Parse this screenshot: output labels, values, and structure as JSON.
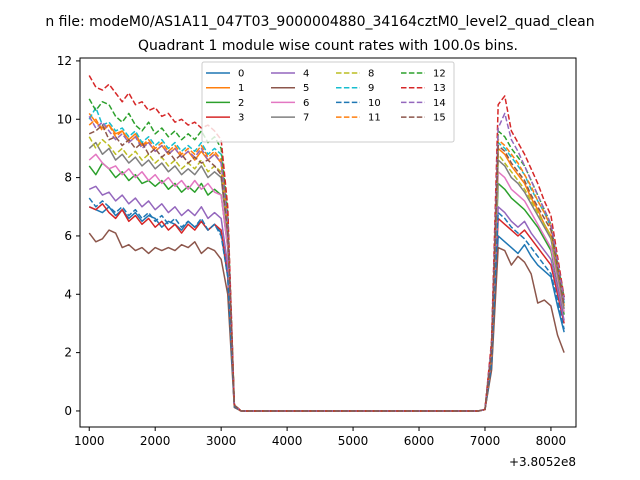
{
  "figure": {
    "suptitle": "n file: modeM0/AS1A11_047T03_9000004880_34164cztM0_level2_quad_clean",
    "title": "Quadrant 1 module wise count rates with 100.0s bins.",
    "offset_text": "+3.8052e8"
  },
  "chart_data": {
    "type": "line",
    "title": "Quadrant 1 module wise count rates with 100.0s bins.",
    "xlabel": "",
    "ylabel": "",
    "x_offset": 380520000,
    "xlim": [
      860,
      8380
    ],
    "ylim": [
      -0.55,
      12.1
    ],
    "xticks": [
      1000,
      2000,
      3000,
      4000,
      5000,
      6000,
      7000,
      8000
    ],
    "yticks": [
      0,
      2,
      4,
      6,
      8,
      10,
      12
    ],
    "legend_position": "top-center",
    "legend_ncol": 4,
    "grid": false,
    "x": [
      1000,
      1100,
      1200,
      1300,
      1400,
      1500,
      1600,
      1700,
      1800,
      1900,
      2000,
      2100,
      2200,
      2300,
      2400,
      2500,
      2600,
      2700,
      2800,
      2900,
      3000,
      3100,
      3200,
      3300,
      3400,
      3500,
      3600,
      3700,
      3800,
      3900,
      4000,
      4100,
      4200,
      4300,
      4400,
      4500,
      4600,
      4700,
      4800,
      4900,
      5000,
      5100,
      5200,
      5300,
      5400,
      5500,
      5600,
      5700,
      5800,
      5900,
      6000,
      6100,
      6200,
      6300,
      6400,
      6500,
      6600,
      6700,
      6800,
      6900,
      7000,
      7100,
      7200,
      7300,
      7400,
      7500,
      7600,
      7700,
      7800,
      7900,
      8000,
      8100,
      8200
    ],
    "series": [
      {
        "name": "0",
        "color": "#1f77b4",
        "dash": "solid",
        "pre": [
          7.0,
          6.9,
          6.8,
          7.0,
          6.7,
          6.9,
          6.6,
          6.8,
          6.5,
          6.7,
          6.6,
          6.3,
          6.5,
          6.4,
          6.2,
          6.5,
          6.3,
          6.5,
          6.2,
          6.4,
          6.1,
          4.6,
          0.15
        ],
        "post": [
          0.05,
          1.5,
          6.0,
          5.8,
          5.6,
          5.4,
          5.7,
          5.3,
          5.0,
          4.8,
          4.6,
          3.6,
          2.7
        ]
      },
      {
        "name": "1",
        "color": "#ff7f0e",
        "dash": "solid",
        "pre": [
          10.2,
          9.9,
          9.7,
          9.8,
          9.5,
          9.6,
          9.3,
          9.5,
          9.1,
          9.2,
          8.9,
          9.1,
          8.8,
          9.0,
          8.7,
          8.9,
          8.6,
          8.9,
          8.6,
          8.8,
          8.5,
          6.4,
          0.2
        ],
        "post": [
          0.05,
          2.1,
          9.0,
          8.8,
          8.4,
          8.1,
          7.8,
          7.3,
          6.9,
          6.4,
          6.0,
          4.8,
          3.6
        ]
      },
      {
        "name": "2",
        "color": "#2ca02c",
        "dash": "solid",
        "pre": [
          8.4,
          8.1,
          8.5,
          8.3,
          8.0,
          8.2,
          7.9,
          8.1,
          7.8,
          7.9,
          7.7,
          7.9,
          7.6,
          7.8,
          7.5,
          7.7,
          7.5,
          7.8,
          7.4,
          7.6,
          7.4,
          5.6,
          0.18
        ],
        "post": [
          0.05,
          1.8,
          7.8,
          7.6,
          7.3,
          7.1,
          6.9,
          6.6,
          6.3,
          5.9,
          5.5,
          4.4,
          3.3
        ]
      },
      {
        "name": "3",
        "color": "#d62728",
        "dash": "solid",
        "pre": [
          7.0,
          6.9,
          7.1,
          6.8,
          6.6,
          6.9,
          6.5,
          6.7,
          6.4,
          6.6,
          6.3,
          6.5,
          6.2,
          6.4,
          6.1,
          6.4,
          6.2,
          6.5,
          6.2,
          6.4,
          6.2,
          4.7,
          0.15
        ],
        "post": [
          0.05,
          1.6,
          6.6,
          6.4,
          6.2,
          6.0,
          6.2,
          5.9,
          5.6,
          5.3,
          5.0,
          4.0,
          3.0
        ]
      },
      {
        "name": "4",
        "color": "#9467bd",
        "dash": "solid",
        "pre": [
          7.6,
          7.7,
          7.4,
          7.5,
          7.2,
          7.4,
          7.1,
          7.3,
          7.0,
          7.2,
          6.9,
          7.1,
          6.8,
          7.0,
          6.7,
          6.9,
          6.7,
          7.0,
          6.6,
          6.8,
          6.6,
          5.0,
          0.16
        ],
        "post": [
          0.05,
          1.7,
          7.0,
          6.8,
          6.5,
          6.3,
          6.5,
          6.1,
          5.8,
          5.5,
          5.2,
          4.2,
          3.1
        ]
      },
      {
        "name": "5",
        "color": "#8c564b",
        "dash": "solid",
        "pre": [
          6.1,
          5.8,
          5.9,
          6.2,
          6.1,
          5.6,
          5.7,
          5.5,
          5.6,
          5.4,
          5.6,
          5.5,
          5.6,
          5.5,
          5.7,
          5.6,
          5.8,
          5.4,
          5.6,
          5.5,
          5.2,
          4.0,
          0.12
        ],
        "post": [
          0.05,
          1.4,
          5.6,
          5.5,
          5.0,
          5.3,
          5.1,
          4.7,
          3.7,
          3.8,
          3.6,
          2.6,
          2.0
        ]
      },
      {
        "name": "6",
        "color": "#e377c2",
        "dash": "solid",
        "pre": [
          8.6,
          8.8,
          8.5,
          8.3,
          8.4,
          8.1,
          8.3,
          8.0,
          8.2,
          7.9,
          8.1,
          7.8,
          8.0,
          7.7,
          7.9,
          7.6,
          7.9,
          7.6,
          7.8,
          7.5,
          7.4,
          5.6,
          0.18
        ],
        "post": [
          0.05,
          1.9,
          8.2,
          8.0,
          7.6,
          7.4,
          7.2,
          6.8,
          6.4,
          6.0,
          5.6,
          4.5,
          3.4
        ]
      },
      {
        "name": "7",
        "color": "#7f7f7f",
        "dash": "solid",
        "pre": [
          9.0,
          9.2,
          8.8,
          9.0,
          8.6,
          8.8,
          8.5,
          8.7,
          8.4,
          8.6,
          8.3,
          8.5,
          8.2,
          8.4,
          8.1,
          8.3,
          8.1,
          8.4,
          8.0,
          8.2,
          8.0,
          6.0,
          0.19
        ],
        "post": [
          0.05,
          2.0,
          8.6,
          8.4,
          8.0,
          7.8,
          7.5,
          7.1,
          6.7,
          6.3,
          5.9,
          4.7,
          3.5
        ]
      },
      {
        "name": "8",
        "color": "#bcbd22",
        "dash": "dashed",
        "pre": [
          9.4,
          9.0,
          9.3,
          9.1,
          8.8,
          9.0,
          8.7,
          8.9,
          8.6,
          8.8,
          8.5,
          8.7,
          8.4,
          8.6,
          8.3,
          8.5,
          8.3,
          8.6,
          8.2,
          8.4,
          8.2,
          6.2,
          0.19
        ],
        "post": [
          0.05,
          2.0,
          8.8,
          8.5,
          8.2,
          7.9,
          7.6,
          7.2,
          6.8,
          6.4,
          6.0,
          4.8,
          3.6
        ]
      },
      {
        "name": "9",
        "color": "#17becf",
        "dash": "dashed",
        "pre": [
          10.0,
          10.4,
          9.8,
          9.9,
          9.6,
          9.7,
          9.4,
          9.6,
          9.2,
          9.4,
          9.1,
          9.3,
          9.0,
          9.2,
          8.9,
          9.1,
          8.9,
          9.2,
          8.8,
          9.0,
          8.8,
          6.6,
          0.2
        ],
        "post": [
          0.05,
          2.2,
          9.2,
          9.0,
          8.7,
          8.4,
          8.1,
          7.6,
          7.2,
          6.8,
          6.3,
          5.0,
          3.7
        ]
      },
      {
        "name": "10",
        "color": "#1f77b4",
        "dash": "dashed",
        "pre": [
          7.3,
          7.0,
          7.2,
          7.0,
          6.8,
          7.0,
          6.7,
          6.9,
          6.6,
          6.8,
          6.5,
          6.7,
          6.4,
          6.6,
          6.3,
          6.5,
          6.3,
          6.6,
          6.2,
          6.4,
          6.0,
          4.6,
          0.15
        ],
        "post": [
          0.05,
          1.6,
          6.8,
          6.6,
          6.3,
          6.1,
          5.9,
          5.6,
          5.3,
          5.0,
          4.7,
          3.8,
          2.8
        ]
      },
      {
        "name": "11",
        "color": "#ff7f0e",
        "dash": "dashed",
        "pre": [
          9.8,
          10.0,
          9.6,
          9.8,
          9.4,
          9.6,
          9.2,
          9.4,
          9.1,
          9.3,
          9.0,
          9.2,
          8.9,
          9.1,
          8.8,
          9.0,
          8.8,
          9.1,
          8.7,
          8.9,
          8.6,
          6.5,
          0.2
        ],
        "post": [
          0.05,
          2.1,
          9.3,
          9.1,
          8.8,
          8.5,
          8.1,
          7.7,
          7.2,
          6.8,
          6.3,
          5.0,
          3.8
        ]
      },
      {
        "name": "12",
        "color": "#2ca02c",
        "dash": "dashed",
        "pre": [
          10.7,
          10.3,
          10.6,
          10.5,
          10.1,
          9.9,
          10.2,
          9.8,
          9.6,
          9.9,
          9.5,
          9.7,
          9.4,
          9.6,
          9.3,
          9.5,
          9.3,
          9.6,
          9.2,
          9.4,
          9.0,
          6.8,
          0.21
        ],
        "post": [
          0.05,
          2.3,
          9.6,
          9.4,
          9.0,
          8.7,
          8.4,
          7.9,
          7.4,
          6.9,
          6.4,
          5.1,
          3.9
        ]
      },
      {
        "name": "13",
        "color": "#d62728",
        "dash": "dashed",
        "pre": [
          11.5,
          11.1,
          11.0,
          11.2,
          10.9,
          10.6,
          10.9,
          10.5,
          10.6,
          10.3,
          10.4,
          10.1,
          10.2,
          9.9,
          10.0,
          9.8,
          9.9,
          9.7,
          9.8,
          9.6,
          9.3,
          7.0,
          0.22
        ],
        "post": [
          0.05,
          2.4,
          10.5,
          10.8,
          9.6,
          9.2,
          8.8,
          8.3,
          7.8,
          7.2,
          6.7,
          5.3,
          3.9
        ]
      },
      {
        "name": "14",
        "color": "#9467bd",
        "dash": "dashed",
        "pre": [
          10.1,
          9.7,
          9.9,
          9.6,
          9.3,
          9.5,
          9.2,
          9.4,
          9.0,
          9.2,
          8.9,
          9.1,
          8.8,
          9.0,
          8.7,
          8.9,
          8.7,
          9.0,
          8.6,
          8.8,
          8.5,
          6.4,
          0.2
        ],
        "post": [
          0.05,
          2.2,
          9.7,
          10.2,
          9.3,
          8.9,
          8.4,
          7.9,
          7.4,
          6.9,
          6.4,
          5.1,
          3.8
        ]
      },
      {
        "name": "15",
        "color": "#8c564b",
        "dash": "dashed",
        "pre": [
          9.5,
          9.6,
          9.8,
          9.3,
          9.4,
          9.1,
          9.3,
          9.0,
          9.2,
          8.8,
          9.0,
          8.7,
          8.9,
          8.6,
          8.8,
          8.5,
          8.7,
          8.5,
          8.6,
          8.4,
          8.1,
          6.1,
          0.19
        ],
        "post": [
          0.05,
          2.0,
          9.1,
          8.9,
          8.5,
          8.2,
          7.9,
          7.4,
          7.0,
          6.6,
          6.2,
          4.9,
          3.6
        ]
      }
    ]
  }
}
